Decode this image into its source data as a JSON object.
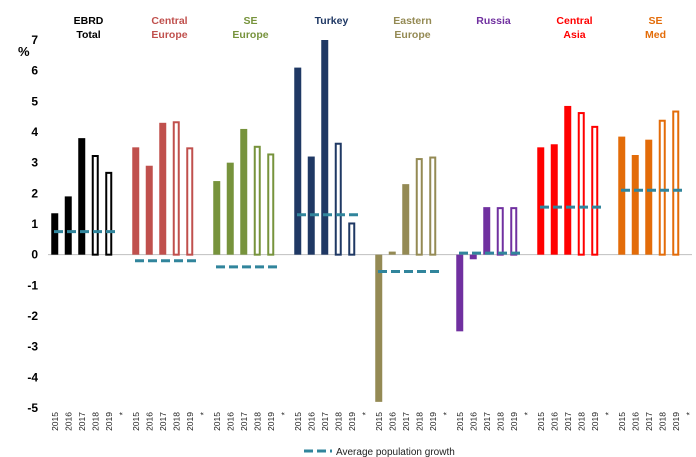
{
  "chart_data": {
    "type": "bar",
    "ylabel": "%",
    "ylim": [
      -5,
      7
    ],
    "yticks": [
      "-5",
      "-4",
      "-3",
      "-2",
      "-1",
      "0",
      "1",
      "2",
      "3",
      "4",
      "5",
      "6",
      "7"
    ],
    "categories": [
      "2015",
      "2016",
      "2017",
      "2018",
      "2019",
      "*"
    ],
    "hollow_categories": [
      "2018",
      "2019"
    ],
    "legend": {
      "label": "Average population growth",
      "color": "#31859c",
      "position": "bottom-center"
    },
    "groups": [
      {
        "label": "EBRD Total",
        "color": "#000000",
        "values": [
          1.35,
          1.9,
          3.8,
          3.25,
          2.7
        ],
        "avg_population_growth": 0.75
      },
      {
        "label": "Central Europe",
        "color": "#c0504d",
        "values": [
          3.5,
          2.9,
          4.3,
          4.35,
          3.5
        ],
        "avg_population_growth": -0.2
      },
      {
        "label": "SE Europe",
        "color": "#77933c",
        "values": [
          2.4,
          3.0,
          4.1,
          3.55,
          3.3
        ],
        "avg_population_growth": -0.4
      },
      {
        "label": "Turkey",
        "color": "#1f3864",
        "values": [
          6.1,
          3.2,
          7.0,
          3.65,
          1.05
        ],
        "avg_population_growth": 1.3
      },
      {
        "label": "Eastern Europe",
        "color": "#948a54",
        "values": [
          -4.8,
          0.1,
          2.3,
          3.15,
          3.2
        ],
        "avg_population_growth": -0.55
      },
      {
        "label": "Russia",
        "color": "#7030a0",
        "values": [
          -2.5,
          -0.15,
          1.55,
          1.55,
          1.55
        ],
        "avg_population_growth": 0.05
      },
      {
        "label": "Central Asia",
        "color": "#ff0000",
        "values": [
          3.5,
          3.6,
          4.85,
          4.65,
          4.2
        ],
        "avg_population_growth": 1.55
      },
      {
        "label": "SE Med",
        "color": "#e36c09",
        "values": [
          3.85,
          3.25,
          3.75,
          4.4,
          4.7
        ],
        "avg_population_growth": 2.1
      }
    ]
  }
}
